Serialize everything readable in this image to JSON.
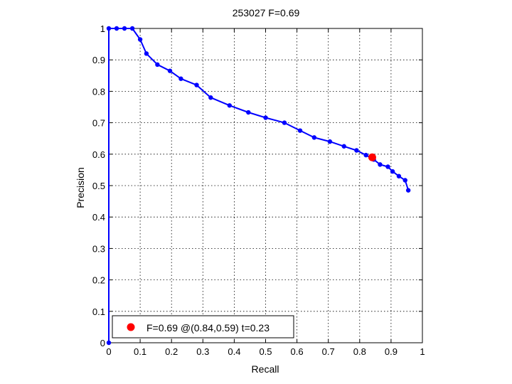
{
  "chart_data": {
    "type": "line",
    "title": "253027 F=0.69",
    "xlabel": "Recall",
    "ylabel": "Precision",
    "xlim": [
      0,
      1
    ],
    "ylim": [
      0,
      1
    ],
    "grid": true,
    "xticks": [
      "0",
      "0.1",
      "0.2",
      "0.3",
      "0.4",
      "0.5",
      "0.6",
      "0.7",
      "0.8",
      "0.9",
      "1"
    ],
    "yticks": [
      "0",
      "0.1",
      "0.2",
      "0.3",
      "0.4",
      "0.5",
      "0.6",
      "0.7",
      "0.8",
      "0.9",
      "1"
    ],
    "series": [
      {
        "color": "#0000ff",
        "marker": "dot",
        "x": [
          0,
          0,
          0.025,
          0.05,
          0.075,
          0.1,
          0.12,
          0.155,
          0.195,
          0.23,
          0.28,
          0.325,
          0.385,
          0.445,
          0.5,
          0.56,
          0.61,
          0.655,
          0.705,
          0.75,
          0.79,
          0.82,
          0.845,
          0.865,
          0.89,
          0.905,
          0.925,
          0.945,
          0.955
        ],
        "y": [
          0,
          1.0,
          1.0,
          1.0,
          1.0,
          0.965,
          0.92,
          0.885,
          0.865,
          0.84,
          0.82,
          0.78,
          0.755,
          0.733,
          0.716,
          0.7,
          0.675,
          0.653,
          0.64,
          0.625,
          0.612,
          0.597,
          0.583,
          0.567,
          0.56,
          0.545,
          0.53,
          0.517,
          0.485
        ]
      }
    ],
    "highlight": {
      "x": 0.84,
      "y": 0.59,
      "color": "#ff0000"
    },
    "legend": {
      "position": "bottom-left",
      "text": "F=0.69 @(0.84,0.59) t=0.23"
    }
  }
}
